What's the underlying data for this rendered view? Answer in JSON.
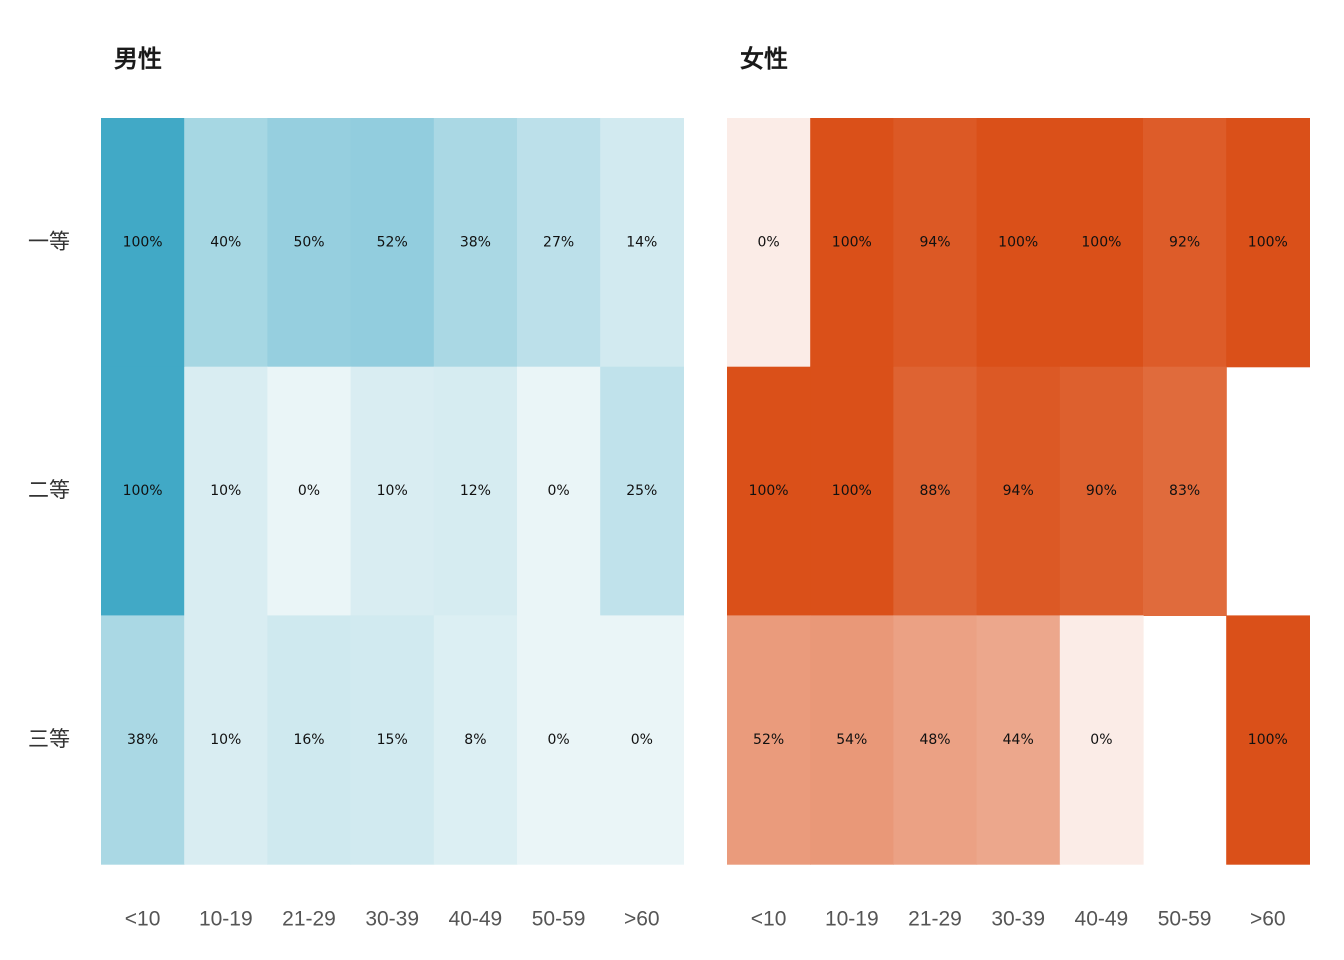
{
  "chart_data": [
    {
      "type": "heatmap",
      "title": "男性",
      "categories": [
        "<10",
        "10-19",
        "21-29",
        "30-39",
        "40-49",
        "50-59",
        ">60"
      ],
      "rows": [
        "一等",
        "二等",
        "三等"
      ],
      "values": [
        [
          100,
          40,
          50,
          52,
          38,
          27,
          14
        ],
        [
          100,
          10,
          0,
          10,
          12,
          0,
          25
        ],
        [
          38,
          10,
          16,
          15,
          8,
          0,
          0
        ]
      ],
      "value_labels": [
        [
          "100%",
          "40%",
          "50%",
          "52%",
          "38%",
          "27%",
          "14%"
        ],
        [
          "100%",
          "10%",
          "0%",
          "10%",
          "12%",
          "0%",
          "25%"
        ],
        [
          "38%",
          "10%",
          "16%",
          "15%",
          "8%",
          "0%",
          "0%"
        ]
      ],
      "color_low": "#eaf5f7",
      "color_high": "#41a9c6"
    },
    {
      "type": "heatmap",
      "title": "女性",
      "categories": [
        "<10",
        "10-19",
        "21-29",
        "30-39",
        "40-49",
        "50-59",
        ">60"
      ],
      "rows": [
        "一等",
        "二等",
        "三等"
      ],
      "values": [
        [
          0,
          100,
          94,
          100,
          100,
          92,
          100
        ],
        [
          100,
          100,
          88,
          94,
          90,
          83,
          null
        ],
        [
          52,
          54,
          48,
          44,
          0,
          null,
          100
        ]
      ],
      "value_labels": [
        [
          "0%",
          "100%",
          "94%",
          "100%",
          "100%",
          "92%",
          "100%"
        ],
        [
          "100%",
          "100%",
          "88%",
          "94%",
          "90%",
          "83%",
          ""
        ],
        [
          "52%",
          "54%",
          "48%",
          "44%",
          "0%",
          "",
          "100%"
        ]
      ],
      "color_low": "#fbece7",
      "color_high": "#da5019"
    }
  ]
}
